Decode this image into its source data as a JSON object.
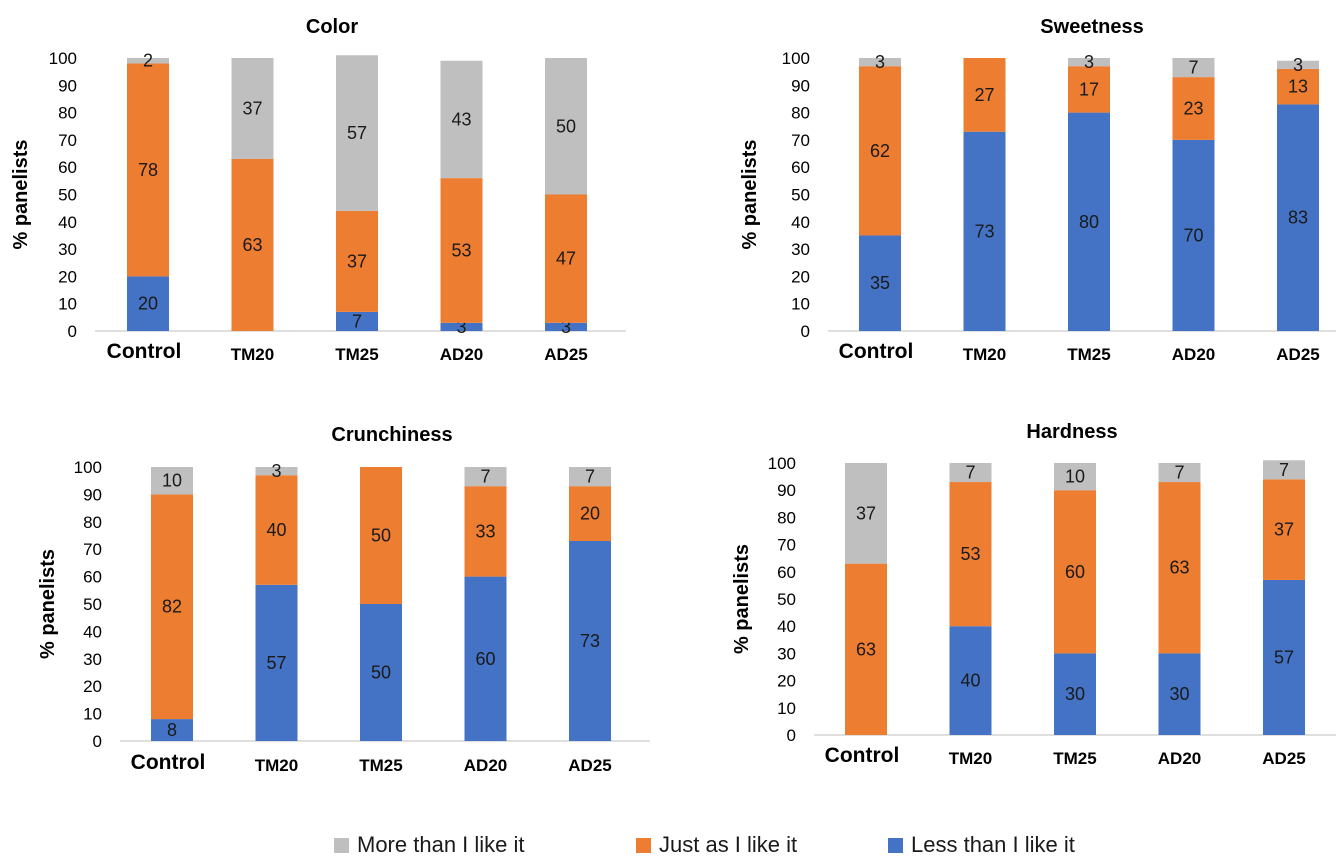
{
  "chart_data": [
    {
      "type": "bar",
      "stacked": true,
      "title": "Color",
      "ylabel": "% panelists",
      "ylim": [
        0,
        100
      ],
      "yticks": [
        0,
        10,
        20,
        30,
        40,
        50,
        60,
        70,
        80,
        90,
        100
      ],
      "categories": [
        "Control",
        "TM20",
        "TM25",
        "AD20",
        "AD25"
      ],
      "series": [
        {
          "name": "Less than I like it",
          "values": [
            20,
            0,
            7,
            3,
            3
          ],
          "labels": [
            "20",
            "",
            "7",
            "3",
            "3"
          ]
        },
        {
          "name": "Just as I like it",
          "values": [
            78,
            63,
            37,
            53,
            47
          ],
          "labels": [
            "78",
            "63",
            "37",
            "53",
            "47"
          ]
        },
        {
          "name": "More than I like it",
          "values": [
            2,
            37,
            57,
            43,
            50
          ],
          "labels": [
            "2",
            "37",
            "57",
            "43",
            "50"
          ]
        }
      ]
    },
    {
      "type": "bar",
      "stacked": true,
      "title": "Sweetness",
      "ylabel": "% panelists",
      "ylim": [
        0,
        100
      ],
      "yticks": [
        0,
        10,
        20,
        30,
        40,
        50,
        60,
        70,
        80,
        90,
        100
      ],
      "categories": [
        "Control",
        "TM20",
        "TM25",
        "AD20",
        "AD25"
      ],
      "series": [
        {
          "name": "Less than I like it",
          "values": [
            35,
            73,
            80,
            70,
            83
          ],
          "labels": [
            "35",
            "73",
            "80",
            "70",
            "83"
          ]
        },
        {
          "name": "Just as I like it",
          "values": [
            62,
            27,
            17,
            23,
            13
          ],
          "labels": [
            "62",
            "27",
            "17",
            "23",
            "13"
          ]
        },
        {
          "name": "More than I like it",
          "values": [
            3,
            0,
            3,
            7,
            3
          ],
          "labels": [
            "3",
            "",
            "3",
            "7",
            "3"
          ]
        }
      ]
    },
    {
      "type": "bar",
      "stacked": true,
      "title": "Crunchiness",
      "ylabel": "% panelists",
      "ylim": [
        0,
        100
      ],
      "yticks": [
        0,
        10,
        20,
        30,
        40,
        50,
        60,
        70,
        80,
        90,
        100
      ],
      "categories": [
        "Control",
        "TM20",
        "TM25",
        "AD20",
        "AD25"
      ],
      "series": [
        {
          "name": "Less than I like it",
          "values": [
            8,
            57,
            50,
            60,
            73
          ],
          "labels": [
            "8",
            "57",
            "50",
            "60",
            "73"
          ]
        },
        {
          "name": "Just as I like it",
          "values": [
            82,
            40,
            50,
            33,
            20
          ],
          "labels": [
            "82",
            "40",
            "50",
            "33",
            "20"
          ]
        },
        {
          "name": "More than I like it",
          "values": [
            10,
            3,
            0,
            7,
            7
          ],
          "labels": [
            "10",
            "3",
            "",
            "7",
            "7"
          ]
        }
      ]
    },
    {
      "type": "bar",
      "stacked": true,
      "title": "Hardness",
      "ylabel": "% panelists",
      "ylim": [
        0,
        100
      ],
      "yticks": [
        0,
        10,
        20,
        30,
        40,
        50,
        60,
        70,
        80,
        90,
        100
      ],
      "categories": [
        "Control",
        "TM20",
        "TM25",
        "AD20",
        "AD25"
      ],
      "series": [
        {
          "name": "Less than I like it",
          "values": [
            0,
            40,
            30,
            30,
            57
          ],
          "labels": [
            "",
            "40",
            "30",
            "30",
            "57"
          ]
        },
        {
          "name": "Just as I like it",
          "values": [
            63,
            53,
            60,
            63,
            37
          ],
          "labels": [
            "63",
            "53",
            "60",
            "63",
            "37"
          ]
        },
        {
          "name": "More than I like it",
          "values": [
            37,
            7,
            10,
            7,
            7
          ],
          "labels": [
            "37",
            "7",
            "10",
            "7",
            "7"
          ]
        }
      ]
    }
  ],
  "legend": {
    "placement": "bottom",
    "items": [
      {
        "label": "More than I like it",
        "color": "#BFBFBF"
      },
      {
        "label": "Just as I like it",
        "color": "#ED7D31"
      },
      {
        "label": "Less than I like it",
        "color": "#4472C4"
      }
    ]
  },
  "colors": {
    "Less than I like it": "#4472C4",
    "Just as I like it": "#ED7D31",
    "More than I like it": "#BFBFBF"
  }
}
